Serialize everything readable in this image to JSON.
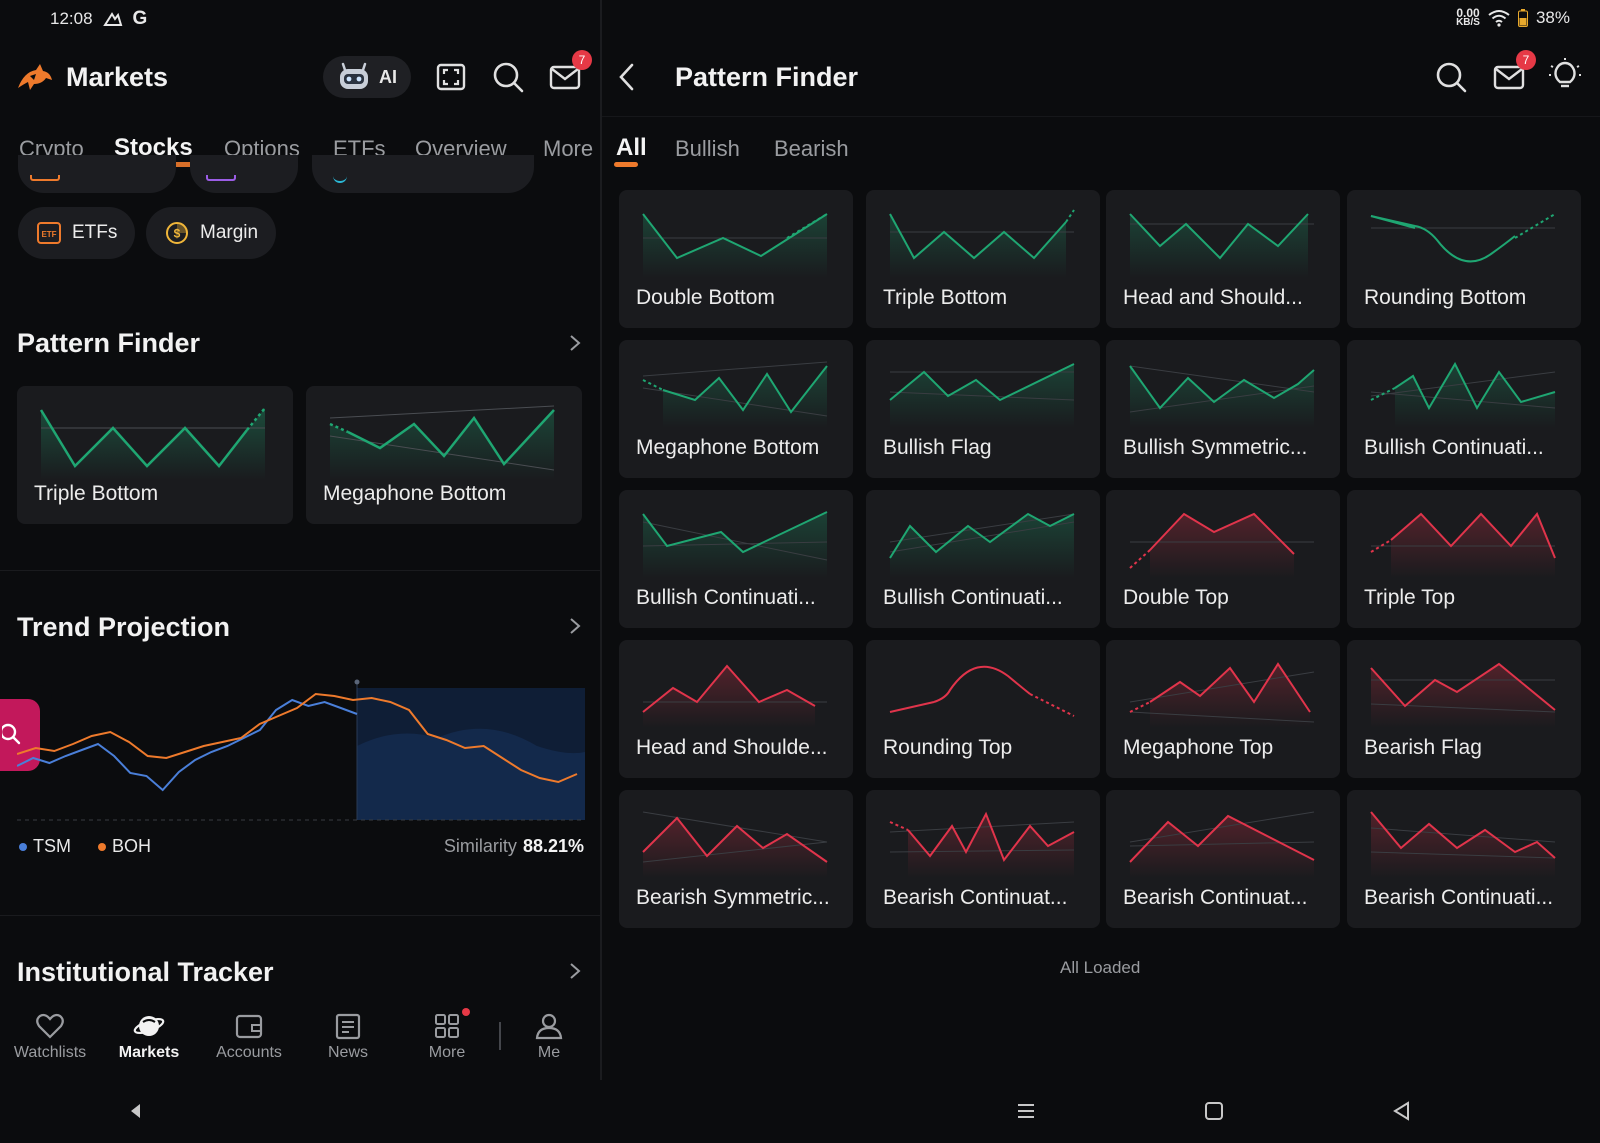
{
  "status": {
    "time": "12:08",
    "g_label": "G",
    "speed": "0.00",
    "speed_unit": "KB/S",
    "battery": "38%"
  },
  "left": {
    "app_title": "Markets",
    "ai_label": "AI",
    "mail_badge": "7",
    "tabs": [
      "Crypto",
      "Stocks",
      "Options",
      "ETFs",
      "Overview",
      "More"
    ],
    "active_tab": "Stocks",
    "chips": [
      {
        "label": "ETFs",
        "icon": "etf-icon"
      },
      {
        "label": "Margin",
        "icon": "margin-coin-icon"
      }
    ],
    "pattern_finder": {
      "title": "Pattern Finder",
      "cards": [
        "Triple Bottom",
        "Megaphone Bottom"
      ]
    },
    "trend_projection": {
      "title": "Trend Projection",
      "legend": [
        "TSM",
        "BOH"
      ],
      "similarity_label": "Similarity",
      "similarity_value": "88.21%",
      "colors": {
        "tsm": "#4a7fd9",
        "boh": "#ee7a2c"
      },
      "chart_data": {
        "type": "line",
        "series": [
          {
            "name": "TSM",
            "values": [
              52,
              60,
              55,
              62,
              68,
              74,
              62,
              45,
              42,
              28,
              46,
              58,
              66,
              72,
              80,
              88,
              108,
              118,
              112,
              116,
              110,
              104
            ]
          },
          {
            "name": "BOH",
            "values": [
              64,
              70,
              67,
              74,
              82,
              86,
              76,
              62,
              60,
              66,
              72,
              76,
              80,
              94,
              102,
              110,
              124,
              122,
              118,
              120,
              116,
              108,
              84,
              78,
              70,
              72,
              60,
              48,
              40,
              36,
              44
            ]
          }
        ]
      }
    },
    "institutional_tracker": {
      "title": "Institutional Tracker"
    },
    "bottom_nav": [
      "Watchlists",
      "Markets",
      "Accounts",
      "News",
      "More",
      "Me"
    ],
    "active_nav": "Markets"
  },
  "right": {
    "title": "Pattern Finder",
    "mail_badge": "7",
    "tabs": [
      "All",
      "Bullish",
      "Bearish"
    ],
    "active_tab": "All",
    "patterns": [
      {
        "name": "Double Bottom",
        "kind": "bullish"
      },
      {
        "name": "Triple Bottom",
        "kind": "bullish"
      },
      {
        "name": "Head and Should...",
        "kind": "bullish"
      },
      {
        "name": "Rounding Bottom",
        "kind": "bullish"
      },
      {
        "name": "Megaphone Bottom",
        "kind": "bullish"
      },
      {
        "name": "Bullish Flag",
        "kind": "bullish"
      },
      {
        "name": "Bullish Symmetric...",
        "kind": "bullish"
      },
      {
        "name": "Bullish Continuati...",
        "kind": "bullish"
      },
      {
        "name": "Bullish Continuati...",
        "kind": "bullish"
      },
      {
        "name": "Bullish Continuati...",
        "kind": "bullish"
      },
      {
        "name": "Double Top",
        "kind": "bearish"
      },
      {
        "name": "Triple Top",
        "kind": "bearish"
      },
      {
        "name": "Head and Shoulde...",
        "kind": "bearish"
      },
      {
        "name": "Rounding Top",
        "kind": "bearish"
      },
      {
        "name": "Megaphone Top",
        "kind": "bearish"
      },
      {
        "name": "Bearish Flag",
        "kind": "bearish"
      },
      {
        "name": "Bearish Symmetric...",
        "kind": "bearish"
      },
      {
        "name": "Bearish Continuat...",
        "kind": "bearish"
      },
      {
        "name": "Bearish Continuat...",
        "kind": "bearish"
      },
      {
        "name": "Bearish Continuati...",
        "kind": "bearish"
      }
    ],
    "footer": "All Loaded",
    "colors": {
      "bullish": "#1fa672",
      "bearish": "#e0344b",
      "accent": "#ee7a2c"
    }
  }
}
